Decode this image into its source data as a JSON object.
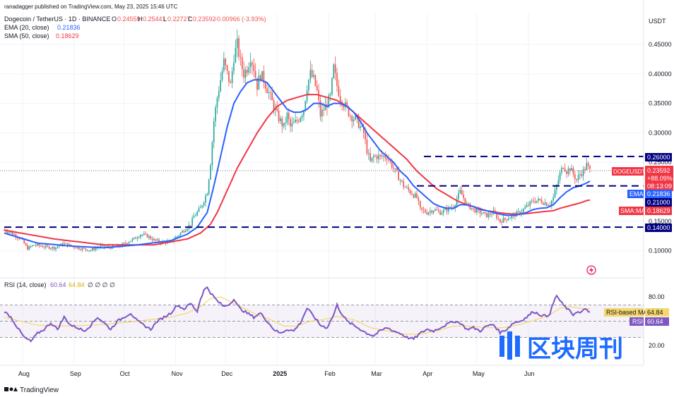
{
  "header": {
    "publisher": "ranadagger published on TradingView.com, May 23, 2025 15:46 UTC",
    "symbol": "Dogecoin / TetherUS · 1D · BINANCE",
    "ohlc": {
      "o_label": "O",
      "o": "0.24559",
      "h_label": "H",
      "h": "0.25441",
      "l_label": "L",
      "l": "0.22727",
      "c_label": "C",
      "c": "0.23592",
      "change": "-0.00966 (-3.93%)"
    },
    "ema_label": "EMA (20, close)",
    "ema_value": "0.21836",
    "sma_label": "SMA (50, close)",
    "sma_value": "0.18629",
    "rsi_label": "RSI (14, close)",
    "rsi_value": "60.64",
    "rsi_ma_value": "64.84",
    "rsi_na": "∅  ∅  ∅  ∅"
  },
  "axis": {
    "currency": "USDT",
    "price_ticks": [
      "0.45000",
      "0.40000",
      "0.35000",
      "0.30000",
      "0.25000",
      "0.15000",
      "0.10000"
    ],
    "rsi_ticks": [
      "80.00",
      "20.00"
    ],
    "months": [
      "Aug",
      "Sep",
      "Oct",
      "Nov",
      "Dec",
      "2025",
      "Feb",
      "Mar",
      "Apr",
      "May",
      "Jun"
    ]
  },
  "badges": {
    "level_260": "0.26000",
    "level_210": "0.21000",
    "level_140": "0.14000",
    "price_symbol": "DOGEUSDT",
    "price_value": "0.23592",
    "price_change": "+88.09%",
    "countdown": "08:13:09",
    "ema_tag": "EMA",
    "ema_value": "0.21836",
    "sma_tag": "SMA:MA",
    "sma_value": "0.18629",
    "rsi_ma_tag": "RSI-based MA",
    "rsi_ma_value": "64.84",
    "rsi_tag": "RSI",
    "rsi_value": "60.64"
  },
  "watermark": "区块周刊",
  "footer": {
    "brand": "TradingView"
  },
  "colors": {
    "up": "#26a69a",
    "down": "#ef5350",
    "ema": "#2962ff",
    "sma": "#f23645",
    "rsi": "#7e57c2",
    "rsi_ma": "#f5d76e",
    "level": "#000080",
    "bg": "#ffffff"
  },
  "chart_data": {
    "type": "candlestick",
    "x_range": [
      "2025-07-21",
      "2025-06-15"
    ],
    "months": [
      "Aug",
      "Sep",
      "Oct",
      "Nov",
      "Dec",
      "2025",
      "Feb",
      "Mar",
      "Apr",
      "May",
      "Jun"
    ],
    "y_range": [
      0.085,
      0.49
    ],
    "horizontal_levels": [
      0.26,
      0.21,
      0.14
    ],
    "close_path": [
      [
        0,
        0.135
      ],
      [
        6,
        0.128
      ],
      [
        10,
        0.12
      ],
      [
        14,
        0.104
      ],
      [
        18,
        0.11
      ],
      [
        24,
        0.107
      ],
      [
        30,
        0.105
      ],
      [
        36,
        0.112
      ],
      [
        40,
        0.108
      ],
      [
        46,
        0.104
      ],
      [
        52,
        0.101
      ],
      [
        58,
        0.108
      ],
      [
        64,
        0.106
      ],
      [
        70,
        0.108
      ],
      [
        74,
        0.115
      ],
      [
        78,
        0.12
      ],
      [
        82,
        0.128
      ],
      [
        86,
        0.125
      ],
      [
        90,
        0.118
      ],
      [
        94,
        0.115
      ],
      [
        100,
        0.115
      ],
      [
        104,
        0.125
      ],
      [
        108,
        0.135
      ],
      [
        112,
        0.145
      ],
      [
        114,
        0.158
      ],
      [
        118,
        0.172
      ],
      [
        122,
        0.2
      ],
      [
        124,
        0.25
      ],
      [
        126,
        0.32
      ],
      [
        128,
        0.36
      ],
      [
        130,
        0.39
      ],
      [
        132,
        0.42
      ],
      [
        134,
        0.4
      ],
      [
        136,
        0.38
      ],
      [
        138,
        0.43
      ],
      [
        140,
        0.45
      ],
      [
        142,
        0.42
      ],
      [
        144,
        0.4
      ],
      [
        146,
        0.41
      ],
      [
        148,
        0.43
      ],
      [
        150,
        0.41
      ],
      [
        152,
        0.38
      ],
      [
        154,
        0.4
      ],
      [
        156,
        0.39
      ],
      [
        160,
        0.36
      ],
      [
        164,
        0.33
      ],
      [
        168,
        0.31
      ],
      [
        170,
        0.33
      ],
      [
        172,
        0.31
      ],
      [
        176,
        0.32
      ],
      [
        180,
        0.34
      ],
      [
        182,
        0.38
      ],
      [
        184,
        0.4
      ],
      [
        186,
        0.39
      ],
      [
        188,
        0.37
      ],
      [
        190,
        0.33
      ],
      [
        192,
        0.34
      ],
      [
        196,
        0.36
      ],
      [
        198,
        0.41
      ],
      [
        200,
        0.38
      ],
      [
        202,
        0.36
      ],
      [
        204,
        0.35
      ],
      [
        208,
        0.33
      ],
      [
        212,
        0.32
      ],
      [
        216,
        0.3
      ],
      [
        218,
        0.27
      ],
      [
        220,
        0.25
      ],
      [
        222,
        0.26
      ],
      [
        226,
        0.26
      ],
      [
        230,
        0.26
      ],
      [
        234,
        0.24
      ],
      [
        238,
        0.22
      ],
      [
        240,
        0.21
      ],
      [
        244,
        0.2
      ],
      [
        248,
        0.19
      ],
      [
        250,
        0.17
      ],
      [
        254,
        0.165
      ],
      [
        258,
        0.17
      ],
      [
        262,
        0.165
      ],
      [
        266,
        0.17
      ],
      [
        270,
        0.175
      ],
      [
        274,
        0.2
      ],
      [
        276,
        0.19
      ],
      [
        278,
        0.178
      ],
      [
        282,
        0.17
      ],
      [
        286,
        0.165
      ],
      [
        290,
        0.16
      ],
      [
        294,
        0.165
      ],
      [
        298,
        0.15
      ],
      [
        302,
        0.155
      ],
      [
        306,
        0.16
      ],
      [
        310,
        0.165
      ],
      [
        314,
        0.175
      ],
      [
        318,
        0.185
      ],
      [
        322,
        0.185
      ],
      [
        326,
        0.18
      ],
      [
        328,
        0.18
      ],
      [
        330,
        0.19
      ],
      [
        332,
        0.21
      ],
      [
        334,
        0.23
      ],
      [
        336,
        0.245
      ],
      [
        338,
        0.235
      ],
      [
        340,
        0.24
      ],
      [
        342,
        0.23
      ],
      [
        344,
        0.22
      ],
      [
        346,
        0.23
      ],
      [
        348,
        0.235
      ],
      [
        350,
        0.245
      ],
      [
        352,
        0.2359
      ]
    ],
    "ema20_path": [
      [
        0,
        0.13
      ],
      [
        20,
        0.113
      ],
      [
        40,
        0.108
      ],
      [
        60,
        0.105
      ],
      [
        80,
        0.11
      ],
      [
        100,
        0.117
      ],
      [
        110,
        0.128
      ],
      [
        116,
        0.14
      ],
      [
        122,
        0.165
      ],
      [
        126,
        0.21
      ],
      [
        130,
        0.26
      ],
      [
        134,
        0.31
      ],
      [
        138,
        0.35
      ],
      [
        142,
        0.37
      ],
      [
        146,
        0.385
      ],
      [
        150,
        0.39
      ],
      [
        154,
        0.39
      ],
      [
        158,
        0.385
      ],
      [
        162,
        0.37
      ],
      [
        166,
        0.355
      ],
      [
        170,
        0.34
      ],
      [
        174,
        0.335
      ],
      [
        178,
        0.335
      ],
      [
        182,
        0.34
      ],
      [
        186,
        0.35
      ],
      [
        190,
        0.35
      ],
      [
        194,
        0.345
      ],
      [
        198,
        0.35
      ],
      [
        202,
        0.35
      ],
      [
        206,
        0.345
      ],
      [
        210,
        0.335
      ],
      [
        214,
        0.32
      ],
      [
        218,
        0.3
      ],
      [
        222,
        0.285
      ],
      [
        226,
        0.27
      ],
      [
        230,
        0.26
      ],
      [
        234,
        0.25
      ],
      [
        238,
        0.235
      ],
      [
        242,
        0.225
      ],
      [
        246,
        0.21
      ],
      [
        250,
        0.2
      ],
      [
        254,
        0.19
      ],
      [
        258,
        0.18
      ],
      [
        262,
        0.175
      ],
      [
        266,
        0.172
      ],
      [
        270,
        0.172
      ],
      [
        274,
        0.178
      ],
      [
        278,
        0.178
      ],
      [
        282,
        0.175
      ],
      [
        286,
        0.17
      ],
      [
        290,
        0.168
      ],
      [
        294,
        0.165
      ],
      [
        298,
        0.162
      ],
      [
        302,
        0.16
      ],
      [
        306,
        0.16
      ],
      [
        310,
        0.162
      ],
      [
        314,
        0.165
      ],
      [
        318,
        0.17
      ],
      [
        322,
        0.172
      ],
      [
        326,
        0.173
      ],
      [
        330,
        0.178
      ],
      [
        334,
        0.19
      ],
      [
        338,
        0.2
      ],
      [
        342,
        0.207
      ],
      [
        346,
        0.21
      ],
      [
        350,
        0.215
      ],
      [
        352,
        0.218
      ]
    ],
    "sma50_path": [
      [
        0,
        0.135
      ],
      [
        30,
        0.12
      ],
      [
        60,
        0.11
      ],
      [
        90,
        0.11
      ],
      [
        110,
        0.12
      ],
      [
        118,
        0.13
      ],
      [
        124,
        0.145
      ],
      [
        128,
        0.165
      ],
      [
        132,
        0.19
      ],
      [
        136,
        0.215
      ],
      [
        140,
        0.24
      ],
      [
        146,
        0.27
      ],
      [
        152,
        0.3
      ],
      [
        158,
        0.325
      ],
      [
        164,
        0.345
      ],
      [
        170,
        0.355
      ],
      [
        176,
        0.36
      ],
      [
        182,
        0.365
      ],
      [
        188,
        0.365
      ],
      [
        194,
        0.36
      ],
      [
        200,
        0.355
      ],
      [
        206,
        0.345
      ],
      [
        212,
        0.33
      ],
      [
        218,
        0.315
      ],
      [
        224,
        0.3
      ],
      [
        230,
        0.285
      ],
      [
        236,
        0.27
      ],
      [
        242,
        0.255
      ],
      [
        248,
        0.235
      ],
      [
        254,
        0.22
      ],
      [
        260,
        0.205
      ],
      [
        266,
        0.195
      ],
      [
        272,
        0.185
      ],
      [
        278,
        0.178
      ],
      [
        284,
        0.173
      ],
      [
        290,
        0.168
      ],
      [
        296,
        0.165
      ],
      [
        302,
        0.163
      ],
      [
        308,
        0.162
      ],
      [
        314,
        0.163
      ],
      [
        320,
        0.165
      ],
      [
        326,
        0.167
      ],
      [
        330,
        0.168
      ],
      [
        334,
        0.172
      ],
      [
        338,
        0.175
      ],
      [
        342,
        0.178
      ],
      [
        346,
        0.181
      ],
      [
        350,
        0.185
      ],
      [
        352,
        0.186
      ]
    ],
    "rsi_range": [
      0,
      100
    ],
    "rsi_band": [
      30,
      70
    ],
    "rsi_levels": [
      80,
      50,
      20
    ],
    "rsi_path": [
      [
        0,
        62
      ],
      [
        4,
        55
      ],
      [
        8,
        42
      ],
      [
        12,
        30
      ],
      [
        16,
        25
      ],
      [
        20,
        35
      ],
      [
        24,
        40
      ],
      [
        28,
        48
      ],
      [
        32,
        40
      ],
      [
        36,
        55
      ],
      [
        40,
        45
      ],
      [
        44,
        42
      ],
      [
        48,
        38
      ],
      [
        52,
        45
      ],
      [
        56,
        55
      ],
      [
        60,
        48
      ],
      [
        64,
        40
      ],
      [
        68,
        50
      ],
      [
        72,
        55
      ],
      [
        76,
        60
      ],
      [
        80,
        50
      ],
      [
        84,
        45
      ],
      [
        88,
        40
      ],
      [
        92,
        50
      ],
      [
        96,
        55
      ],
      [
        100,
        60
      ],
      [
        104,
        70
      ],
      [
        108,
        65
      ],
      [
        112,
        72
      ],
      [
        116,
        62
      ],
      [
        118,
        78
      ],
      [
        120,
        88
      ],
      [
        122,
        92
      ],
      [
        124,
        85
      ],
      [
        126,
        80
      ],
      [
        128,
        75
      ],
      [
        132,
        68
      ],
      [
        136,
        72
      ],
      [
        138,
        78
      ],
      [
        140,
        70
      ],
      [
        142,
        65
      ],
      [
        146,
        60
      ],
      [
        150,
        55
      ],
      [
        154,
        60
      ],
      [
        158,
        50
      ],
      [
        162,
        40
      ],
      [
        166,
        35
      ],
      [
        170,
        40
      ],
      [
        174,
        38
      ],
      [
        178,
        48
      ],
      [
        182,
        66
      ],
      [
        186,
        56
      ],
      [
        190,
        45
      ],
      [
        194,
        42
      ],
      [
        198,
        58
      ],
      [
        200,
        70
      ],
      [
        202,
        62
      ],
      [
        206,
        50
      ],
      [
        210,
        45
      ],
      [
        214,
        40
      ],
      [
        218,
        35
      ],
      [
        222,
        32
      ],
      [
        226,
        38
      ],
      [
        230,
        42
      ],
      [
        234,
        38
      ],
      [
        238,
        35
      ],
      [
        242,
        30
      ],
      [
        246,
        28
      ],
      [
        250,
        35
      ],
      [
        254,
        40
      ],
      [
        258,
        38
      ],
      [
        262,
        42
      ],
      [
        266,
        46
      ],
      [
        270,
        50
      ],
      [
        274,
        48
      ],
      [
        278,
        40
      ],
      [
        282,
        42
      ],
      [
        286,
        38
      ],
      [
        290,
        44
      ],
      [
        294,
        46
      ],
      [
        298,
        36
      ],
      [
        302,
        40
      ],
      [
        306,
        48
      ],
      [
        310,
        50
      ],
      [
        314,
        55
      ],
      [
        318,
        62
      ],
      [
        322,
        58
      ],
      [
        326,
        56
      ],
      [
        328,
        60
      ],
      [
        330,
        72
      ],
      [
        332,
        82
      ],
      [
        334,
        75
      ],
      [
        336,
        70
      ],
      [
        340,
        62
      ],
      [
        342,
        58
      ],
      [
        344,
        62
      ],
      [
        346,
        60
      ],
      [
        348,
        63
      ],
      [
        350,
        65
      ],
      [
        352,
        60.64
      ]
    ],
    "rsi_ma_path": [
      [
        0,
        55
      ],
      [
        20,
        45
      ],
      [
        40,
        44
      ],
      [
        60,
        46
      ],
      [
        80,
        50
      ],
      [
        100,
        55
      ],
      [
        110,
        60
      ],
      [
        118,
        68
      ],
      [
        124,
        78
      ],
      [
        130,
        80
      ],
      [
        136,
        74
      ],
      [
        144,
        66
      ],
      [
        152,
        58
      ],
      [
        160,
        52
      ],
      [
        168,
        44
      ],
      [
        176,
        44
      ],
      [
        184,
        50
      ],
      [
        192,
        52
      ],
      [
        200,
        56
      ],
      [
        210,
        52
      ],
      [
        220,
        42
      ],
      [
        230,
        38
      ],
      [
        240,
        34
      ],
      [
        250,
        34
      ],
      [
        260,
        38
      ],
      [
        270,
        44
      ],
      [
        280,
        44
      ],
      [
        290,
        42
      ],
      [
        300,
        42
      ],
      [
        310,
        46
      ],
      [
        320,
        52
      ],
      [
        328,
        58
      ],
      [
        334,
        66
      ],
      [
        340,
        68
      ],
      [
        346,
        66
      ],
      [
        352,
        64.84
      ]
    ]
  }
}
